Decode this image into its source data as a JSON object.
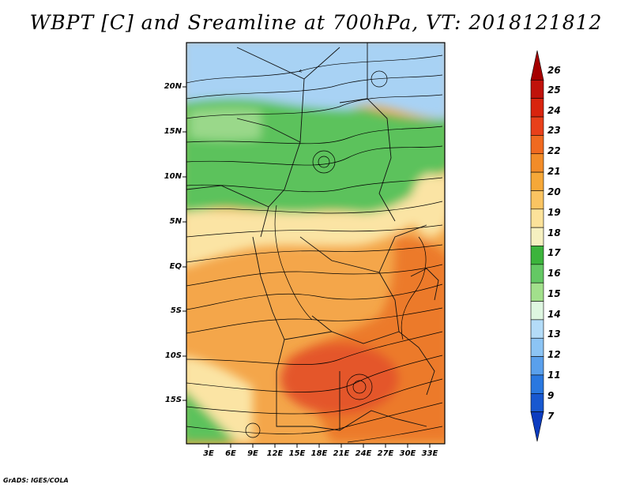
{
  "title": "WBPT [C] and Sreamline at 700hPa, VT: 2018121812",
  "credit": "GrADS: IGES/COLA",
  "map": {
    "variable": "WBPT [C]",
    "overlay": "Sreamline",
    "level": "700hPa",
    "valid_time": "2018121812",
    "lat_ticks": [
      "20N",
      "15N",
      "10N",
      "5N",
      "EQ",
      "5S",
      "10S",
      "15S"
    ],
    "lon_ticks": [
      "3E",
      "6E",
      "9E",
      "12E",
      "15E",
      "18E",
      "21E",
      "24E",
      "27E",
      "30E",
      "33E"
    ]
  },
  "colorbar": {
    "labels": [
      "26",
      "25",
      "24",
      "23",
      "22",
      "21",
      "20",
      "19",
      "18",
      "17",
      "16",
      "15",
      "14",
      "13",
      "12",
      "11",
      "9",
      "7"
    ],
    "colors": [
      "#a50000",
      "#c0120a",
      "#d8240e",
      "#e8401a",
      "#f06a20",
      "#f28c28",
      "#f6a838",
      "#fac462",
      "#fce29a",
      "#f6f0c0",
      "#3cb43c",
      "#64c864",
      "#a2e08c",
      "#def6e0",
      "#b4dcf8",
      "#8cc4f4",
      "#5aa0ec",
      "#2a78e0",
      "#1858d0",
      "#0c3cc0"
    ]
  },
  "colors": {
    "cool_blue": "#a8d2f4",
    "green": "#5cc25c",
    "light_green": "#9ad88a",
    "cream": "#fbe4a4",
    "orange": "#f4a64a",
    "dark_orange": "#ec7a2c",
    "red_orange": "#e4562a"
  }
}
